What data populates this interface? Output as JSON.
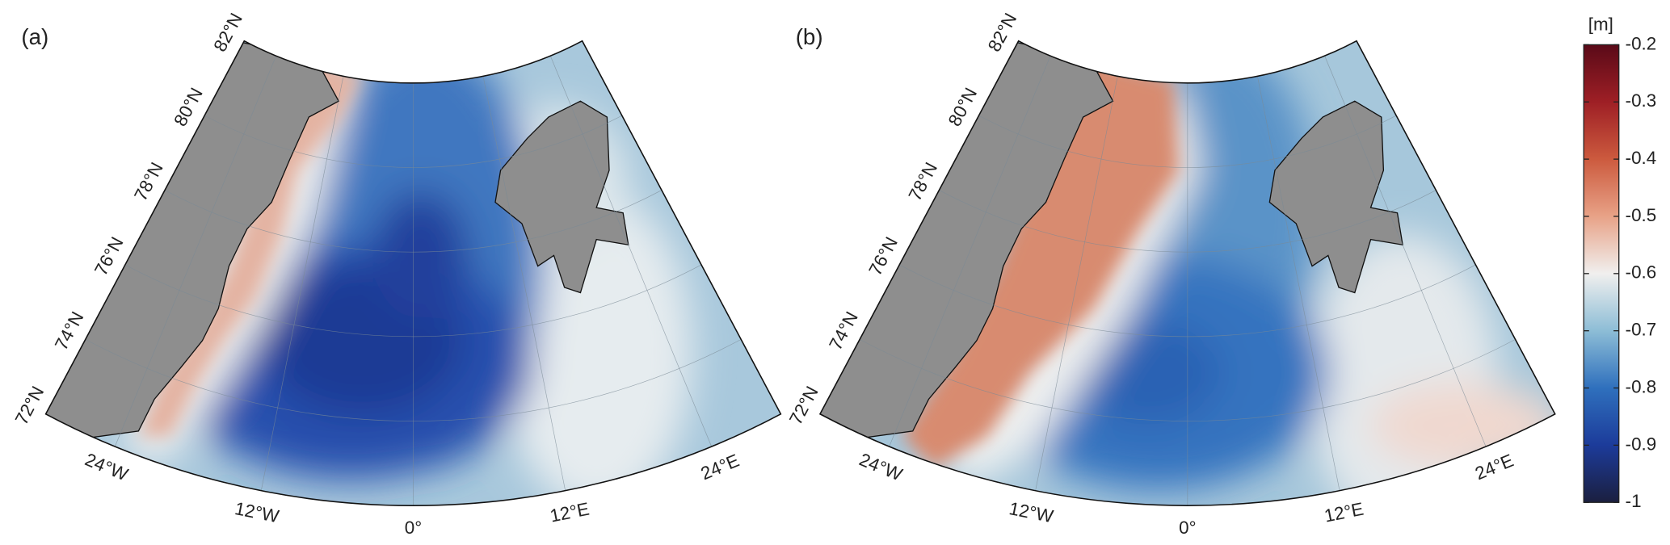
{
  "panels": [
    {
      "label": "(a)",
      "lat_labels": [
        "72°N",
        "74°N",
        "76°N",
        "78°N",
        "80°N",
        "82°N"
      ],
      "lon_labels": [
        "24°W",
        "12°W",
        "0°",
        "12°E",
        "24°E"
      ]
    },
    {
      "label": "(b)",
      "lat_labels": [
        "72°N",
        "74°N",
        "76°N",
        "78°N",
        "80°N",
        "82°N"
      ],
      "lon_labels": [
        "24°W",
        "12°W",
        "0°",
        "12°E",
        "24°E"
      ]
    }
  ],
  "colorbar": {
    "unit": "[m]",
    "lim": [
      -1,
      -0.2
    ],
    "ticks": [
      -0.2,
      -0.3,
      -0.4,
      -0.5,
      -0.6,
      -0.7,
      -0.8,
      -0.9,
      -1
    ],
    "colors": [
      "#1b1f3f",
      "#1c3b9a",
      "#2f70bd",
      "#8dbdd6",
      "#f0efee",
      "#e8a287",
      "#cc5a3e",
      "#9e1f25",
      "#5a0a18"
    ]
  }
}
